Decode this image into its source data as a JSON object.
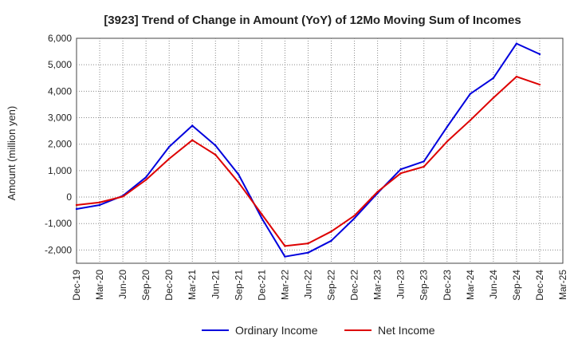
{
  "chart_data": {
    "type": "line",
    "title": "[3923]  Trend of Change in Amount (YoY) of 12Mo Moving Sum of Incomes",
    "xlabel": "",
    "ylabel": "Amount (million yen)",
    "ylim": [
      -2500,
      6000
    ],
    "yticks": [
      -2000,
      -1000,
      0,
      1000,
      2000,
      3000,
      4000,
      5000,
      6000
    ],
    "ytick_labels": [
      "-2,000",
      "-1,000",
      "0",
      "1,000",
      "2,000",
      "3,000",
      "4,000",
      "5,000",
      "6,000"
    ],
    "x_tick_labels": [
      "Dec-19",
      "Mar-20",
      "Jun-20",
      "Sep-20",
      "Dec-20",
      "Mar-21",
      "Jun-21",
      "Sep-21",
      "Dec-21",
      "Mar-22",
      "Jun-22",
      "Sep-22",
      "Dec-22",
      "Mar-23",
      "Jun-23",
      "Sep-23",
      "Dec-23",
      "Mar-24",
      "Jun-24",
      "Sep-24",
      "Dec-24",
      "Mar-25"
    ],
    "grid": true,
    "legend_position": "bottom",
    "series": [
      {
        "name": "Ordinary Income",
        "color": "#0000dd",
        "values": [
          -450,
          -300,
          50,
          750,
          1900,
          2700,
          1950,
          850,
          -800,
          -2250,
          -2100,
          -1650,
          -800,
          150,
          1050,
          1350,
          2650,
          3900,
          4500,
          5800,
          5400
        ]
      },
      {
        "name": "Net Income",
        "color": "#dd0000",
        "values": [
          -300,
          -200,
          20,
          650,
          1450,
          2150,
          1600,
          550,
          -650,
          -1850,
          -1750,
          -1300,
          -700,
          200,
          900,
          1150,
          2100,
          2900,
          3750,
          4550,
          4250
        ]
      }
    ]
  }
}
